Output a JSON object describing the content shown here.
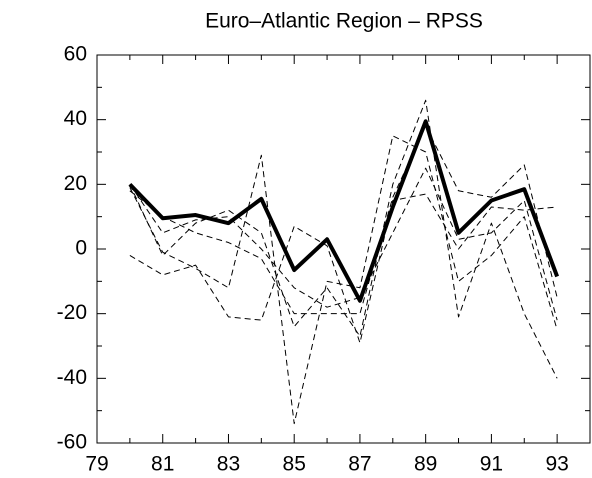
{
  "chart_data": {
    "type": "line",
    "title": "Euro–Atlantic Region – RPSS",
    "x": [
      80,
      81,
      82,
      83,
      84,
      85,
      86,
      87,
      88,
      89,
      90,
      91,
      92,
      93
    ],
    "series": [
      {
        "color": "#000000",
        "style": "dashed",
        "values": [
          20,
          -2,
          8,
          12,
          5,
          -24,
          -12,
          -27,
          20,
          46,
          -21,
          8,
          -20,
          -40
        ]
      },
      {
        "color": "#000000",
        "style": "dashed",
        "values": [
          -2,
          -8,
          -5,
          -21,
          -22,
          7,
          1,
          -29,
          15,
          17,
          0,
          13,
          12,
          13
        ]
      },
      {
        "color": "#000000",
        "style": "dashed",
        "values": [
          19,
          -1,
          -6,
          -12,
          29,
          -54,
          -10,
          -12,
          35,
          30,
          -10,
          -2,
          10,
          -25
        ]
      },
      {
        "color": "#000000",
        "style": "dashed",
        "values": [
          18,
          10,
          5,
          2,
          -3,
          -20,
          -20,
          -20,
          16,
          38,
          18,
          16,
          26,
          -15
        ]
      },
      {
        "color": "#000000",
        "style": "dashed",
        "values": [
          20,
          5,
          9,
          10,
          0,
          -12,
          -18,
          -15,
          5,
          25,
          3,
          5,
          15,
          -22
        ]
      },
      {
        "color": "#000000",
        "style": "solid",
        "values": [
          20,
          9.5,
          10.5,
          8,
          15.5,
          -6.5,
          3,
          -16,
          13,
          39.5,
          5,
          15,
          18.5,
          -8.5
        ]
      }
    ],
    "xlim": [
      79,
      94
    ],
    "xticks": [
      79,
      81,
      83,
      85,
      87,
      89,
      91,
      93
    ],
    "ylim": [
      -60,
      60
    ],
    "yticks": [
      -60,
      -40,
      -20,
      0,
      20,
      40,
      60
    ]
  }
}
